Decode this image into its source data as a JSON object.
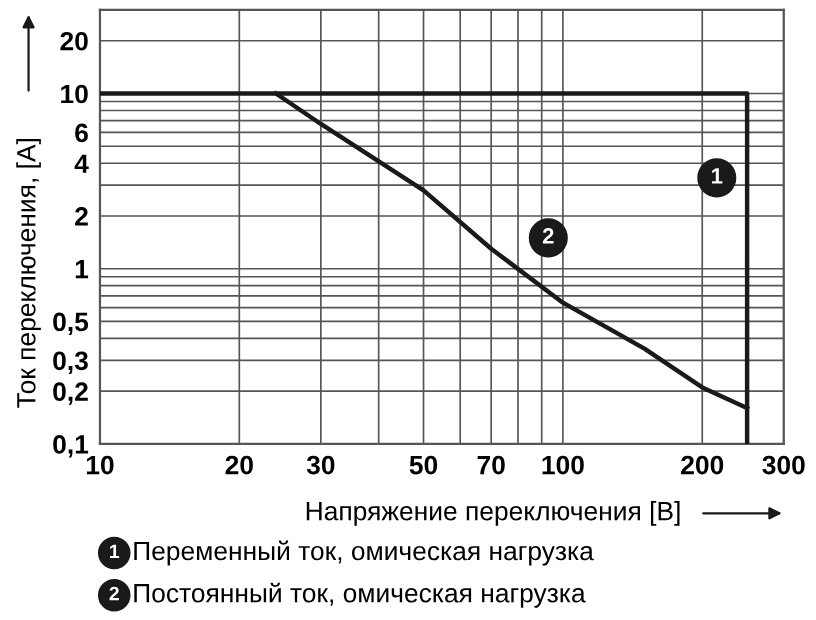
{
  "chart_data": {
    "type": "line",
    "xlabel": "Напряжение переключения [В]",
    "ylabel": "Ток переключения, [A]",
    "series": [
      {
        "name": "Переменный ток, омическая нагрузка",
        "color": "#1a1a1a",
        "x": [
          10,
          250,
          250
        ],
        "values": [
          10,
          10,
          0.1
        ]
      },
      {
        "name": "Постоянный ток, омическая нагрузка",
        "color": "#1a1a1a",
        "x": [
          24,
          30,
          50,
          70,
          100,
          150,
          200,
          250
        ],
        "values": [
          10,
          6.7,
          2.8,
          1.3,
          0.64,
          0.35,
          0.21,
          0.16
        ]
      }
    ],
    "annotations": [
      {
        "text": "1",
        "x": 215,
        "y": 3.3
      },
      {
        "text": "2",
        "x": 93,
        "y": 1.5
      }
    ],
    "log": "xy",
    "xlim": [
      10,
      300
    ],
    "ylim": [
      0.1,
      30
    ],
    "xticks": [
      10,
      20,
      30,
      {
        "value": 40,
        "label": null
      },
      50,
      {
        "value": 60,
        "label": null
      },
      70,
      {
        "value": 80,
        "label": null
      },
      {
        "value": 90,
        "label": null
      },
      100,
      200,
      300
    ],
    "yticks": [
      {
        "value": 0.1,
        "label": "0,1"
      },
      {
        "value": 0.2,
        "label": "0,2"
      },
      {
        "value": 0.3,
        "label": "0,3"
      },
      {
        "value": 0.4,
        "label": null
      },
      {
        "value": 0.5,
        "label": "0,5"
      },
      {
        "value": 0.6,
        "label": null
      },
      {
        "value": 0.7,
        "label": null
      },
      {
        "value": 0.8,
        "label": null
      },
      {
        "value": 0.9,
        "label": null
      },
      1,
      2,
      {
        "value": 3,
        "label": null
      },
      4,
      {
        "value": 5,
        "label": null
      },
      6,
      {
        "value": 7,
        "label": null
      },
      {
        "value": 8,
        "label": null
      },
      {
        "value": 9,
        "label": null
      },
      10,
      20
    ],
    "grid": true,
    "legend": "bottom",
    "line_style": "solid",
    "marker": "none"
  }
}
